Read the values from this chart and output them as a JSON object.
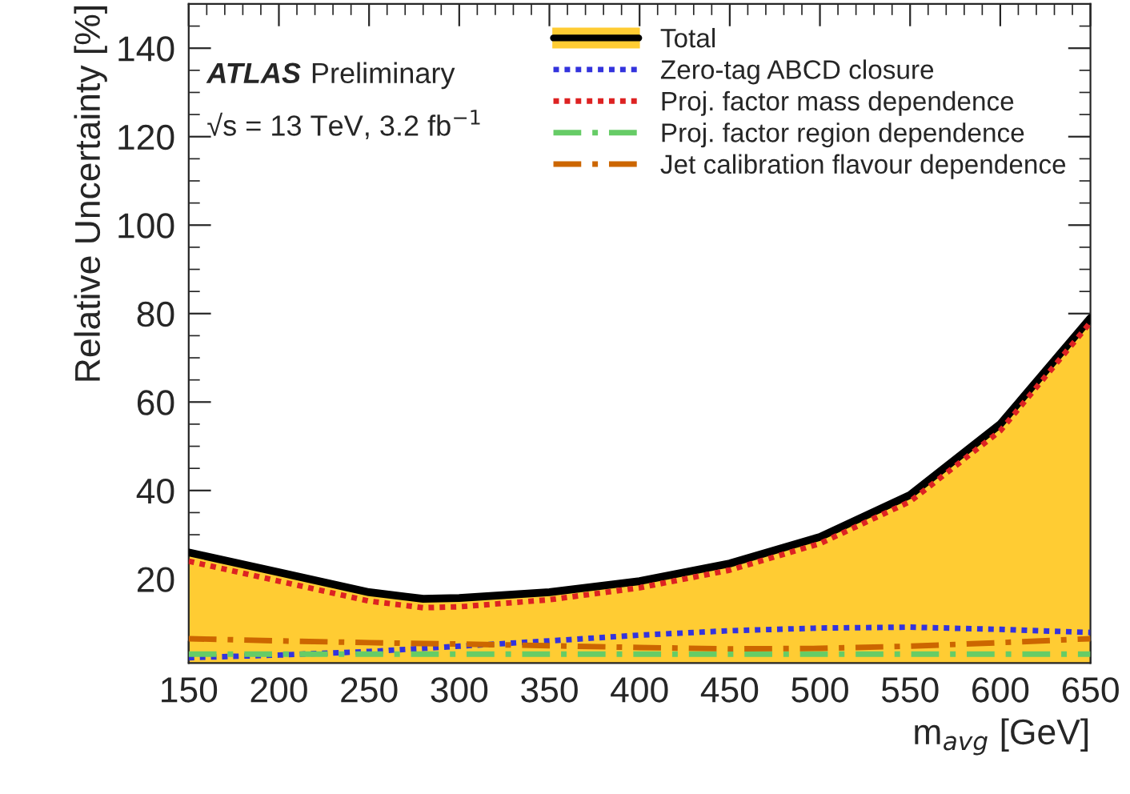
{
  "chart_data": {
    "type": "line",
    "xlabel": "m$_{avg}$ [GeV]",
    "ylabel": "Relative Uncertainty [%]",
    "annotations": [
      "ATLAS",
      "Preliminary",
      "√s = 13 TeV, 3.2 fb$^{−1}$"
    ],
    "x": [
      150,
      200,
      250,
      280,
      300,
      350,
      400,
      450,
      500,
      550,
      600,
      650
    ],
    "series": [
      {
        "name": "Total",
        "type": "area",
        "color": "#ffcc33",
        "values": [
          26,
          21.5,
          17,
          15.5,
          15.7,
          17,
          19.5,
          23.5,
          29.5,
          39,
          55,
          79
        ]
      },
      {
        "name": "Zero-tag ABCD closure",
        "color": "#3333dd",
        "line_style": "dotted",
        "values": [
          2.2,
          2.8,
          3.6,
          4.3,
          4.8,
          6,
          7.3,
          8.3,
          8.9,
          9.1,
          8.6,
          7.9
        ]
      },
      {
        "name": "Proj. factor mass dependence",
        "color": "#dd2222",
        "line_style": "dotted",
        "values": [
          24,
          19.5,
          15,
          13.5,
          13.7,
          15.3,
          18,
          22,
          28,
          37.5,
          53.5,
          78
        ]
      },
      {
        "name": "Proj. factor region dependence",
        "color": "#66cc66",
        "line_style": "dashdot",
        "values": [
          3,
          3,
          3,
          3,
          3,
          3,
          3,
          3,
          3,
          3,
          3,
          3
        ]
      },
      {
        "name": "Jet calibration flavour dependence",
        "color": "#cc6600",
        "line_style": "dashdot",
        "values": [
          6.5,
          6,
          5.6,
          5.4,
          5.3,
          4.9,
          4.5,
          4.2,
          4.3,
          4.8,
          5.6,
          6.5
        ]
      }
    ],
    "xlim": [
      150,
      650
    ],
    "xticks": [
      150,
      200,
      250,
      300,
      350,
      400,
      450,
      500,
      550,
      600,
      650
    ],
    "ylim": [
      1,
      150
    ],
    "yticks": [
      20,
      40,
      60,
      80,
      100,
      120,
      140
    ],
    "legend": "top right",
    "grid": false
  }
}
